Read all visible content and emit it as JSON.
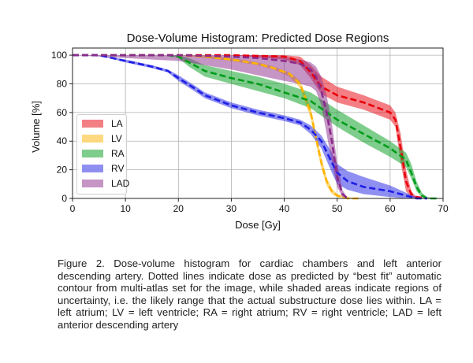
{
  "chart_data": {
    "type": "line",
    "title": "Dose-Volume Histogram: Predicted Dose Regions",
    "xlabel": "Dose [Gy]",
    "ylabel": "Volume [%]",
    "xlim": [
      0,
      70
    ],
    "ylim": [
      0,
      105
    ],
    "xticks": [
      0,
      10,
      20,
      30,
      40,
      50,
      60,
      70
    ],
    "yticks": [
      0,
      20,
      40,
      60,
      80,
      100
    ],
    "grid": true,
    "legend_position": "lower-left",
    "series": [
      {
        "name": "LA",
        "color": "#e8000b",
        "x": [
          0,
          20,
          30,
          40,
          43,
          45,
          47,
          50,
          55,
          60,
          61,
          62,
          63,
          64,
          65,
          67
        ],
        "best_fit": [
          100,
          100,
          100,
          99,
          96,
          88,
          78,
          72,
          67,
          60,
          55,
          35,
          12,
          3,
          1,
          0
        ],
        "upper": [
          100,
          100,
          100,
          100,
          99,
          93,
          85,
          78,
          72,
          65,
          60,
          45,
          20,
          5,
          1,
          0
        ],
        "lower": [
          100,
          100,
          100,
          97,
          93,
          84,
          73,
          67,
          62,
          55,
          50,
          25,
          5,
          1,
          0,
          0
        ]
      },
      {
        "name": "LV",
        "color": "#ffb400",
        "x": [
          0,
          20,
          25,
          30,
          35,
          38,
          41,
          43,
          45,
          46,
          47,
          48,
          49,
          50,
          52,
          54
        ],
        "best_fit": [
          100,
          100,
          99,
          97,
          94,
          91,
          87,
          80,
          60,
          42,
          25,
          12,
          5,
          2,
          0,
          0
        ],
        "upper": [
          100,
          100,
          100,
          98,
          95,
          92,
          88,
          82,
          64,
          46,
          29,
          15,
          7,
          3,
          1,
          0
        ],
        "lower": [
          100,
          100,
          98,
          96,
          93,
          90,
          85,
          77,
          56,
          38,
          21,
          9,
          3,
          1,
          0,
          0
        ]
      },
      {
        "name": "RA",
        "color": "#009c1a",
        "x": [
          0,
          18,
          20,
          22,
          25,
          30,
          35,
          40,
          45,
          50,
          55,
          60,
          63,
          64,
          65,
          66,
          67,
          69
        ],
        "best_fit": [
          100,
          100,
          99,
          95,
          89,
          84,
          80,
          74,
          68,
          55,
          45,
          35,
          27,
          18,
          8,
          2,
          0,
          0
        ],
        "upper": [
          100,
          100,
          100,
          98,
          93,
          89,
          85,
          80,
          74,
          62,
          51,
          40,
          32,
          24,
          12,
          4,
          1,
          0
        ],
        "lower": [
          100,
          100,
          98,
          92,
          85,
          80,
          75,
          70,
          63,
          50,
          39,
          29,
          22,
          14,
          5,
          1,
          0,
          0
        ]
      },
      {
        "name": "RV",
        "color": "#1f1fe5",
        "x": [
          0,
          5,
          10,
          15,
          18,
          20,
          23,
          25,
          30,
          35,
          40,
          43,
          45,
          47,
          49,
          50,
          52,
          55,
          60,
          63,
          65,
          67
        ],
        "best_fit": [
          100,
          100,
          96,
          92,
          89,
          84,
          77,
          72,
          65,
          60,
          56,
          53,
          48,
          40,
          25,
          18,
          12,
          8,
          5,
          2,
          0,
          0
        ],
        "upper": [
          100,
          100,
          97,
          93,
          90,
          86,
          79,
          74,
          67,
          62,
          58,
          55,
          51,
          44,
          32,
          24,
          19,
          15,
          9,
          4,
          1,
          0
        ],
        "lower": [
          100,
          100,
          95,
          91,
          88,
          82,
          75,
          70,
          63,
          58,
          54,
          51,
          45,
          35,
          18,
          10,
          6,
          3,
          1,
          0,
          0,
          0
        ]
      },
      {
        "name": "LAD",
        "color": "#8b2b8b",
        "x": [
          0,
          20,
          30,
          35,
          40,
          43,
          45,
          46,
          47,
          48,
          49,
          50,
          51,
          52
        ],
        "best_fit": [
          100,
          100,
          99,
          98,
          96,
          94,
          90,
          85,
          75,
          60,
          40,
          15,
          3,
          0
        ],
        "upper": [
          100,
          100,
          100,
          100,
          99,
          97,
          95,
          92,
          85,
          72,
          52,
          25,
          6,
          0
        ],
        "lower": [
          100,
          96,
          90,
          86,
          82,
          80,
          78,
          75,
          65,
          45,
          25,
          8,
          1,
          0
        ]
      }
    ]
  },
  "caption": "Figure 2. Dose-volume histogram for cardiac chambers and left anterior descending artery. Dotted lines indicate dose as predicted by “best fit” automatic contour from multi-atlas set for the image, while shaded areas indicate regions of uncertainty, i.e. the likely range that the actual substructure dose lies within. LA = left atrium; LV = left ventricle; RA = right atrium; RV = right ventricle; LAD = left anterior descending artery"
}
